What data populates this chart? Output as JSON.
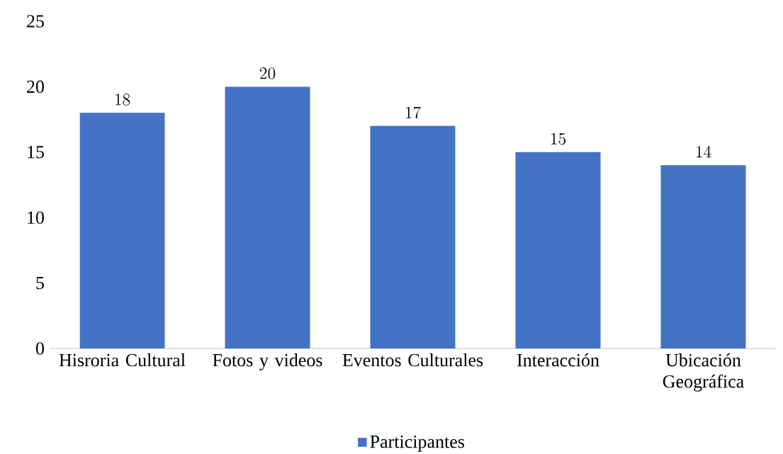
{
  "chart_data": {
    "type": "bar",
    "categories": [
      "Hisroria Cultural",
      "Fotos y videos",
      "Eventos Culturales",
      "Interacción",
      "Ubicación Geográfica"
    ],
    "series": [
      {
        "name": "Participantes",
        "color": "#4472c4",
        "values": [
          18,
          20,
          17,
          15,
          14
        ]
      }
    ],
    "ylim": [
      0,
      25
    ],
    "yticks": [
      0,
      5,
      10,
      15,
      20,
      25
    ],
    "data_labels": true,
    "grid": false,
    "legend": "bottom"
  }
}
